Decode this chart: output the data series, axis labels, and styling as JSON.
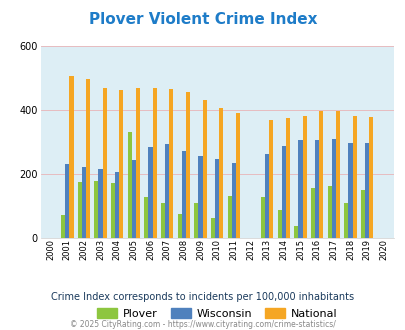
{
  "title": "Plover Violent Crime Index",
  "subtitle": "Crime Index corresponds to incidents per 100,000 inhabitants",
  "footer": "© 2025 CityRating.com - https://www.cityrating.com/crime-statistics/",
  "years": [
    2000,
    2001,
    2002,
    2003,
    2004,
    2005,
    2006,
    2007,
    2008,
    2009,
    2010,
    2011,
    2012,
    2013,
    2014,
    2015,
    2016,
    2017,
    2018,
    2019,
    2020
  ],
  "plover": [
    0,
    70,
    175,
    178,
    170,
    330,
    127,
    107,
    73,
    110,
    60,
    130,
    0,
    128,
    85,
    35,
    157,
    162,
    110,
    150,
    0
  ],
  "wisconsin": [
    0,
    232,
    220,
    215,
    207,
    242,
    283,
    292,
    270,
    257,
    246,
    234,
    0,
    263,
    288,
    305,
    307,
    308,
    298,
    295,
    0
  ],
  "national": [
    0,
    506,
    497,
    470,
    463,
    468,
    470,
    467,
    455,
    430,
    405,
    390,
    0,
    368,
    375,
    381,
    398,
    396,
    381,
    379,
    0
  ],
  "ylim": [
    0,
    600
  ],
  "yticks": [
    0,
    200,
    400,
    600
  ],
  "color_plover": "#8dc63f",
  "color_wisconsin": "#4f81bd",
  "color_national": "#f5a623",
  "bg_color": "#ddeef5",
  "title_color": "#1e7cc8",
  "subtitle_color": "#1a3a5c",
  "footer_color": "#888888",
  "bar_width": 0.25
}
